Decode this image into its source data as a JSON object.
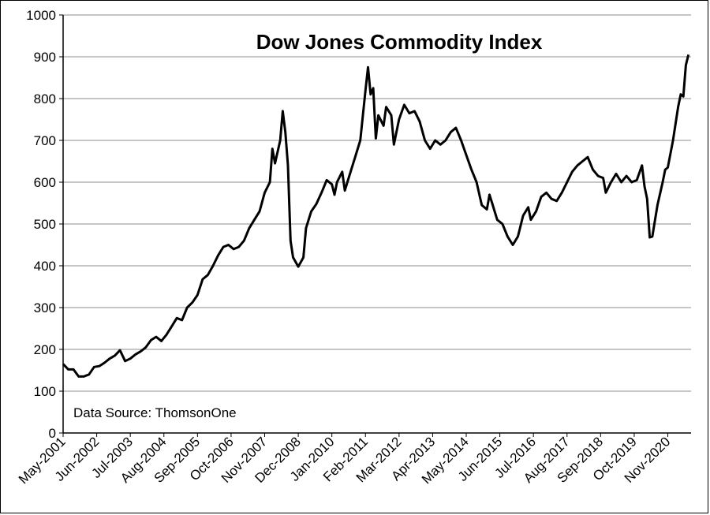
{
  "chart_data": {
    "type": "line",
    "title": "Dow Jones Commodity Index",
    "annotation": "Data Source: ThomsonOne",
    "xlabel": "",
    "ylabel": "",
    "ylim": [
      0,
      1000
    ],
    "yticks": [
      0,
      100,
      200,
      300,
      400,
      500,
      600,
      700,
      800,
      900,
      1000
    ],
    "xticks": [
      "May-2001",
      "Jun-2002",
      "Jul-2003",
      "Aug-2004",
      "Sep-2005",
      "Oct-2006",
      "Nov-2007",
      "Dec-2008",
      "Jan-2010",
      "Feb-2011",
      "Mar-2012",
      "Apr-2013",
      "May-2014",
      "Jun-2015",
      "Jul-2016",
      "Aug-2017",
      "Sep-2018",
      "Oct-2019",
      "Nov-2020"
    ],
    "grid": true,
    "series": [
      {
        "color": "#000000",
        "points": [
          [
            "2001-05",
            165
          ],
          [
            "2001-07",
            152
          ],
          [
            "2001-09",
            152
          ],
          [
            "2001-11",
            135
          ],
          [
            "2002-01",
            135
          ],
          [
            "2002-03",
            140
          ],
          [
            "2002-05",
            158
          ],
          [
            "2002-07",
            160
          ],
          [
            "2002-09",
            168
          ],
          [
            "2002-11",
            178
          ],
          [
            "2003-01",
            185
          ],
          [
            "2003-03",
            198
          ],
          [
            "2003-05",
            172
          ],
          [
            "2003-07",
            178
          ],
          [
            "2003-09",
            188
          ],
          [
            "2003-11",
            195
          ],
          [
            "2004-01",
            205
          ],
          [
            "2004-03",
            222
          ],
          [
            "2004-05",
            230
          ],
          [
            "2004-07",
            220
          ],
          [
            "2004-09",
            235
          ],
          [
            "2004-11",
            255
          ],
          [
            "2005-01",
            275
          ],
          [
            "2005-03",
            270
          ],
          [
            "2005-05",
            300
          ],
          [
            "2005-07",
            312
          ],
          [
            "2005-09",
            330
          ],
          [
            "2005-11",
            368
          ],
          [
            "2006-01",
            378
          ],
          [
            "2006-03",
            400
          ],
          [
            "2006-05",
            425
          ],
          [
            "2006-07",
            445
          ],
          [
            "2006-09",
            450
          ],
          [
            "2006-11",
            440
          ],
          [
            "2007-01",
            445
          ],
          [
            "2007-03",
            460
          ],
          [
            "2007-05",
            490
          ],
          [
            "2007-07",
            510
          ],
          [
            "2007-09",
            530
          ],
          [
            "2007-11",
            575
          ],
          [
            "2008-01",
            600
          ],
          [
            "2008-02",
            680
          ],
          [
            "2008-03",
            645
          ],
          [
            "2008-05",
            700
          ],
          [
            "2008-06",
            770
          ],
          [
            "2008-07",
            720
          ],
          [
            "2008-08",
            640
          ],
          [
            "2008-09",
            460
          ],
          [
            "2008-10",
            420
          ],
          [
            "2008-12",
            398
          ],
          [
            "2009-02",
            420
          ],
          [
            "2009-03",
            490
          ],
          [
            "2009-05",
            530
          ],
          [
            "2009-07",
            548
          ],
          [
            "2009-09",
            575
          ],
          [
            "2009-11",
            605
          ],
          [
            "2010-01",
            595
          ],
          [
            "2010-02",
            570
          ],
          [
            "2010-03",
            600
          ],
          [
            "2010-05",
            625
          ],
          [
            "2010-06",
            580
          ],
          [
            "2010-08",
            620
          ],
          [
            "2010-10",
            660
          ],
          [
            "2010-12",
            700
          ],
          [
            "2011-02",
            820
          ],
          [
            "2011-03",
            875
          ],
          [
            "2011-04",
            810
          ],
          [
            "2011-05",
            825
          ],
          [
            "2011-06",
            705
          ],
          [
            "2011-07",
            760
          ],
          [
            "2011-09",
            735
          ],
          [
            "2011-10",
            780
          ],
          [
            "2011-12",
            760
          ],
          [
            "2012-01",
            690
          ],
          [
            "2012-03",
            750
          ],
          [
            "2012-05",
            785
          ],
          [
            "2012-07",
            765
          ],
          [
            "2012-09",
            770
          ],
          [
            "2012-11",
            745
          ],
          [
            "2013-01",
            700
          ],
          [
            "2013-03",
            680
          ],
          [
            "2013-05",
            700
          ],
          [
            "2013-07",
            690
          ],
          [
            "2013-09",
            700
          ],
          [
            "2013-11",
            720
          ],
          [
            "2014-01",
            730
          ],
          [
            "2014-03",
            700
          ],
          [
            "2014-05",
            665
          ],
          [
            "2014-07",
            630
          ],
          [
            "2014-09",
            600
          ],
          [
            "2014-11",
            545
          ],
          [
            "2015-01",
            535
          ],
          [
            "2015-02",
            570
          ],
          [
            "2015-03",
            550
          ],
          [
            "2015-05",
            510
          ],
          [
            "2015-07",
            500
          ],
          [
            "2015-09",
            470
          ],
          [
            "2015-11",
            450
          ],
          [
            "2016-01",
            470
          ],
          [
            "2016-03",
            520
          ],
          [
            "2016-05",
            540
          ],
          [
            "2016-06",
            510
          ],
          [
            "2016-08",
            530
          ],
          [
            "2016-10",
            565
          ],
          [
            "2016-12",
            575
          ],
          [
            "2017-02",
            560
          ],
          [
            "2017-04",
            555
          ],
          [
            "2017-06",
            575
          ],
          [
            "2017-08",
            600
          ],
          [
            "2017-10",
            625
          ],
          [
            "2017-12",
            640
          ],
          [
            "2018-02",
            650
          ],
          [
            "2018-04",
            660
          ],
          [
            "2018-06",
            630
          ],
          [
            "2018-08",
            615
          ],
          [
            "2018-10",
            610
          ],
          [
            "2018-11",
            575
          ],
          [
            "2019-01",
            600
          ],
          [
            "2019-03",
            620
          ],
          [
            "2019-05",
            600
          ],
          [
            "2019-07",
            615
          ],
          [
            "2019-09",
            600
          ],
          [
            "2019-11",
            605
          ],
          [
            "2020-01",
            640
          ],
          [
            "2020-02",
            590
          ],
          [
            "2020-03",
            560
          ],
          [
            "2020-04",
            468
          ],
          [
            "2020-05",
            470
          ],
          [
            "2020-07",
            545
          ],
          [
            "2020-09",
            600
          ],
          [
            "2020-10",
            630
          ],
          [
            "2020-11",
            635
          ],
          [
            "2021-01",
            700
          ],
          [
            "2021-03",
            780
          ],
          [
            "2021-04",
            810
          ],
          [
            "2021-05",
            805
          ],
          [
            "2021-06",
            880
          ],
          [
            "2021-07",
            905
          ]
        ]
      }
    ]
  }
}
